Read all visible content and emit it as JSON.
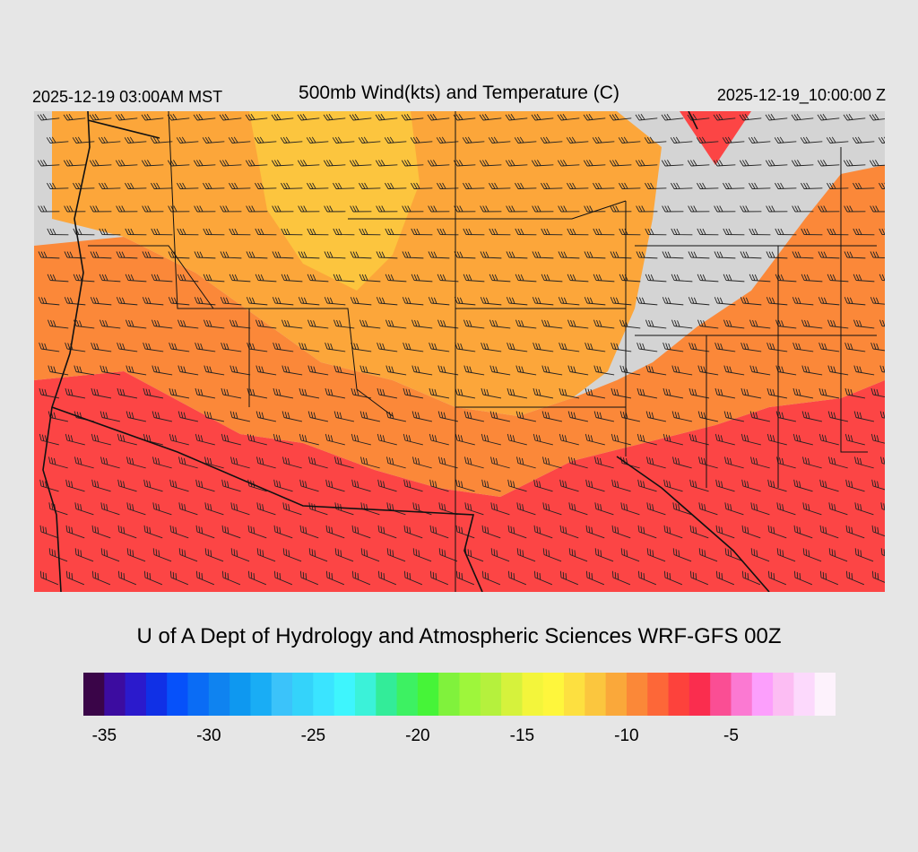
{
  "header": {
    "valid_time": "2025-12-19 03:00AM MST",
    "title": "500mb Wind(kts) and Temperature (C)",
    "init_time": "2025-12-19_10:00:00 Z"
  },
  "credit": "U of A Dept of Hydrology and Atmospheric Sciences WRF-GFS 00Z",
  "colorbar": {
    "min": -36,
    "max": -1,
    "step": 1,
    "colors": [
      "#3a0548",
      "#3c0ca0",
      "#2b1acc",
      "#1030e6",
      "#0651fa",
      "#0a6cf5",
      "#0f83f0",
      "#0e98f0",
      "#19adf5",
      "#3bc3fa",
      "#34d3fa",
      "#3ae4ff",
      "#3ef5fd",
      "#3bf2d9",
      "#33ec99",
      "#3df162",
      "#46f438",
      "#80f23c",
      "#9ef63b",
      "#b5f13d",
      "#d6f23c",
      "#f3f53b",
      "#fef63c",
      "#fde040",
      "#fbc63e",
      "#faa83a",
      "#fb8838",
      "#fd6738",
      "#fd423c",
      "#fa2d4e",
      "#fa4e94",
      "#fb79d2",
      "#fc9ffc",
      "#fcbdf3",
      "#fcd9fc",
      "#fdf2fc"
    ],
    "tick_labels": [
      "-35",
      "-30",
      "-25",
      "-20",
      "-15",
      "-10",
      "-5"
    ],
    "tick_values": [
      -35,
      -30,
      -25,
      -20,
      -15,
      -10,
      -5
    ]
  },
  "map": {
    "region": "Western and Central United States",
    "field": "500mb temperature (C)",
    "temperature_range_c": [
      -11,
      -15
    ],
    "wind_barbs": "westerly to northwesterly",
    "colors": {
      "warm": "#fc4545",
      "mid": "#fb8839",
      "cool": "#fca63a",
      "coolest": "#fcc53e",
      "nodata": "#d4d4d4"
    }
  }
}
